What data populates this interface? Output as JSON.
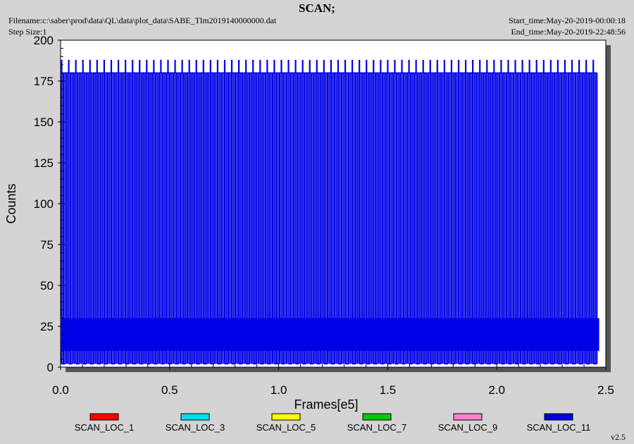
{
  "header": {
    "title": "SCAN;",
    "filename": "Filename:c:\\saber\\prod\\data\\QL\\data\\plot_data\\SABE_Tlm2019140000000.dat",
    "step_size": "Step Size:1",
    "start_time": "Start_time:May-20-2019-00:00:18",
    "end_time": "End_time:May-20-2019-22:48:56"
  },
  "version": "v2.5",
  "colors": {
    "panel_bg": "#d4d4d4",
    "plot_bg": "#ffffff",
    "shadow": "#555555",
    "main_series": "#0000e6"
  },
  "chart_data": {
    "type": "line",
    "xlabel": "Frames[e5]",
    "ylabel": "Counts",
    "xlim": [
      0,
      2.5
    ],
    "ylim": [
      0,
      200
    ],
    "x_ticks": [
      "0.0",
      "0.5",
      "1.0",
      "1.5",
      "2.0",
      "2.5"
    ],
    "y_ticks": [
      "0",
      "25",
      "50",
      "75",
      "100",
      "125",
      "150",
      "175",
      "200"
    ],
    "grid": false,
    "legend_position": "bottom",
    "series": [
      {
        "name": "SCAN_LOC_1",
        "color": "#ff0000",
        "values": []
      },
      {
        "name": "SCAN_LOC_3",
        "color": "#00e0f0",
        "values": []
      },
      {
        "name": "SCAN_LOC_5",
        "color": "#ffff00",
        "values": []
      },
      {
        "name": "SCAN_LOC_7",
        "color": "#00cc00",
        "values": []
      },
      {
        "name": "SCAN_LOC_9",
        "color": "#ff7fd0",
        "values": []
      },
      {
        "name": "SCAN_LOC_11",
        "color": "#0000e6",
        "x_range": [
          0.0,
          2.46
        ],
        "scan_period_frames_e5": 0.0325,
        "scan_peak_counts": 180,
        "alt_peak_counts": 188,
        "scan_min_counts": 2,
        "baseline_band_counts": [
          10,
          30
        ]
      }
    ]
  }
}
